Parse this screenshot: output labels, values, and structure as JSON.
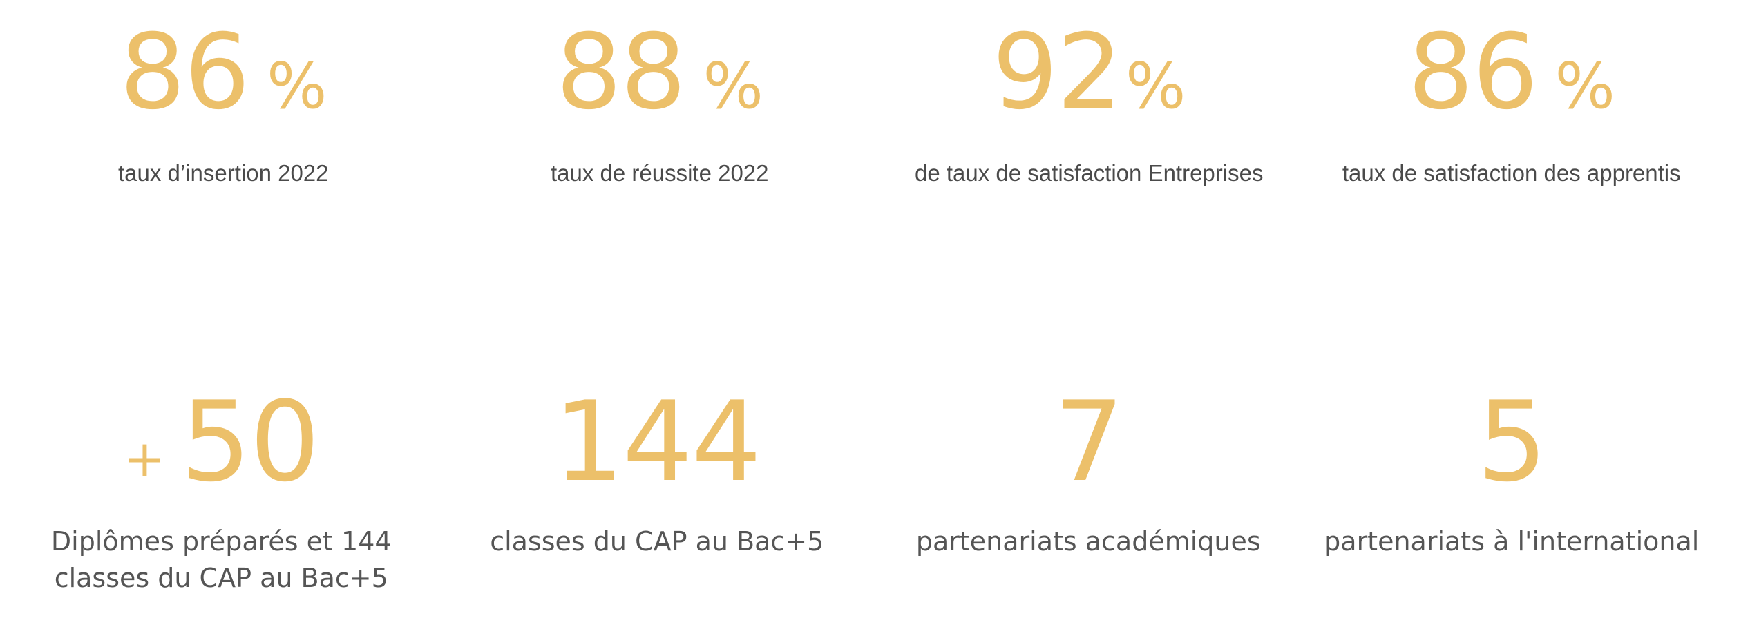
{
  "top_stats": [
    {
      "number": "86",
      "unit": "%",
      "caption": "taux d’insertion 2022"
    },
    {
      "number": "88",
      "unit": "%",
      "caption": "taux de réussite 2022"
    },
    {
      "number": "92",
      "unit": "%",
      "caption": "de taux de satisfaction Entreprises"
    },
    {
      "number": "86",
      "unit": "%",
      "caption": "taux de satisfaction des apprentis"
    }
  ],
  "bottom_stats": [
    {
      "prefix": "+",
      "number": "50",
      "caption": "Diplômes préparés et 144 classes du CAP au Bac+5"
    },
    {
      "number": "144",
      "caption": "classes du CAP au Bac+5"
    },
    {
      "number": "7",
      "caption": "partenariats académiques"
    },
    {
      "number": "5",
      "caption": "partenariats à l'international"
    }
  ],
  "colors": {
    "accent": "#ecc06a",
    "caption": "#4a4a4a"
  }
}
